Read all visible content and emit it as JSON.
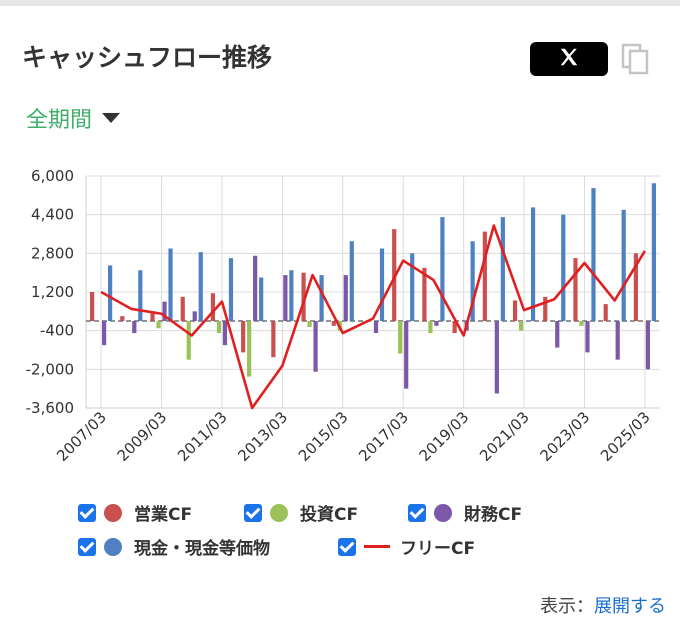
{
  "header": {
    "title": "キャッシュフロー推移",
    "share_x_label": "X",
    "copy_icon": "copy-icon"
  },
  "period": {
    "label": "全期間"
  },
  "footer": {
    "prefix": "表示：",
    "link": "展開する"
  },
  "colors": {
    "operating": "#c9504f",
    "investing": "#9bc15a",
    "financing": "#7b59a8",
    "cash": "#4f80c2",
    "free": "#e02020",
    "checkbox": "#1a73e8",
    "period": "#3fae6a"
  },
  "legend": [
    {
      "label": "営業CF",
      "color": "#c9504f",
      "kind": "dot"
    },
    {
      "label": "投資CF",
      "color": "#9bc15a",
      "kind": "dot"
    },
    {
      "label": "財務CF",
      "color": "#7b59a8",
      "kind": "dot"
    },
    {
      "label": "現金・現金等価物",
      "color": "#4f80c2",
      "kind": "dot"
    },
    {
      "label": "フリーCF",
      "color": "#e02020",
      "kind": "line"
    }
  ],
  "chart_data": {
    "type": "bar",
    "categories": [
      "2007/03",
      "2008/03",
      "2009/03",
      "2010/03",
      "2011/03",
      "2012/03",
      "2013/03",
      "2014/03",
      "2015/03",
      "2016/03",
      "2017/03",
      "2018/03",
      "2019/03",
      "2020/03",
      "2021/03",
      "2022/03",
      "2023/03",
      "2024/03",
      "2025/03"
    ],
    "x_tick_labels": [
      "2007/03",
      "2009/03",
      "2011/03",
      "2013/03",
      "2015/03",
      "2017/03",
      "2019/03",
      "2021/03",
      "2023/03",
      "2025/03"
    ],
    "y_ticks": [
      6000,
      4400,
      2800,
      1200,
      -400,
      -2000,
      -3600
    ],
    "y_tick_labels": [
      "6,000",
      "4,400",
      "2,800",
      "1,200",
      "-400",
      "-2,000",
      "-3,600"
    ],
    "ylim": [
      -3600,
      6000
    ],
    "grid": true,
    "series": [
      {
        "name": "営業CF",
        "kind": "bar",
        "values": [
          1200,
          200,
          400,
          1000,
          1150,
          -1300,
          -1500,
          2000,
          -200,
          0,
          3800,
          2200,
          -500,
          3700,
          850,
          1000,
          2600,
          700,
          2800
        ]
      },
      {
        "name": "投資CF",
        "kind": "bar",
        "values": [
          0,
          0,
          -300,
          -1600,
          -500,
          -2300,
          0,
          -250,
          -400,
          0,
          -1350,
          -500,
          0,
          0,
          -400,
          0,
          -200,
          0,
          0
        ]
      },
      {
        "name": "財務CF",
        "kind": "bar",
        "values": [
          -1000,
          -500,
          800,
          400,
          -1000,
          2700,
          1900,
          -2100,
          1900,
          -500,
          -2800,
          -200,
          -400,
          -3000,
          0,
          -1100,
          -1300,
          -1600,
          -2000
        ]
      },
      {
        "name": "現金・現金等価物",
        "kind": "bar",
        "values": [
          2300,
          2100,
          3000,
          2850,
          2600,
          1800,
          2100,
          1900,
          3300,
          3000,
          2800,
          4300,
          3300,
          4300,
          4700,
          4400,
          5500,
          4600,
          5700
        ]
      },
      {
        "name": "フリーCF",
        "kind": "line",
        "values": [
          1200,
          500,
          300,
          -600,
          800,
          -3600,
          -1850,
          1900,
          -500,
          100,
          2500,
          1700,
          -600,
          3950,
          450,
          900,
          2400,
          850,
          2900
        ]
      }
    ]
  }
}
